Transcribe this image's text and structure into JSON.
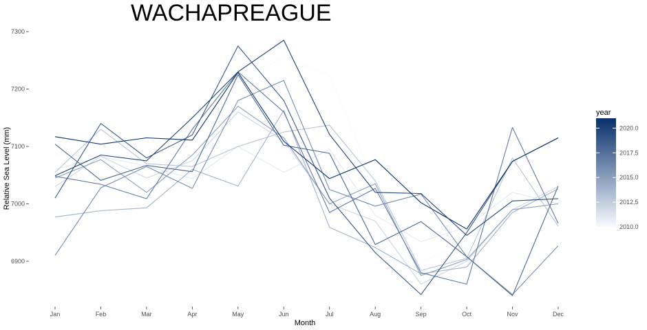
{
  "chart_data": {
    "type": "line",
    "title": "WACHAPREAGUE",
    "xlabel": "Month",
    "ylabel": "Relative Sea Level (mm)",
    "categories": [
      "Jan",
      "Feb",
      "Mar",
      "Apr",
      "May",
      "Jun",
      "Jul",
      "Aug",
      "Sep",
      "Oct",
      "Nov",
      "Dec"
    ],
    "yticks": [
      6900,
      7000,
      7100,
      7200,
      7300
    ],
    "ylim": [
      6840,
      7310
    ],
    "grid": false,
    "legend": {
      "title": "year",
      "position": "right",
      "labels": [
        "2010.0",
        "2012.5",
        "2015.0",
        "2017.5",
        "2020.0"
      ],
      "range": [
        2010,
        2021
      ]
    },
    "color_scale": {
      "low": "#f7fbff",
      "high": "#08306b"
    },
    "series": [
      {
        "year": 2010,
        "values": [
          7085,
          7089,
          7077,
          7063,
          7215,
          7255,
          7225,
          7032,
          6900,
          6930,
          7025,
          7010
        ]
      },
      {
        "year": 2011,
        "values": [
          7060,
          7082,
          7066,
          7044,
          7100,
          7055,
          7095,
          6980,
          6934,
          6960,
          7020,
          7000
        ]
      },
      {
        "year": 2012,
        "values": [
          7030,
          7083,
          7045,
          7075,
          7160,
          7110,
          7000,
          6970,
          6860,
          6900,
          6990,
          7030
        ]
      },
      {
        "year": 2013,
        "values": [
          7055,
          7130,
          7070,
          7065,
          7100,
          7125,
          7137,
          7040,
          6884,
          6905,
          7080,
          6961
        ]
      },
      {
        "year": 2014,
        "values": [
          6977,
          6988,
          6993,
          7060,
          7031,
          7163,
          6959,
          6924,
          6878,
          6890,
          6985,
          7026
        ]
      },
      {
        "year": 2015,
        "values": [
          7045,
          7077,
          7020,
          7085,
          7170,
          7115,
          7000,
          7035,
          6875,
          6903,
          6990,
          7000
        ]
      },
      {
        "year": 2016,
        "values": [
          6910,
          7028,
          7065,
          7027,
          7180,
          7215,
          7025,
          6996,
          7017,
          6908,
          6842,
          6927
        ]
      },
      {
        "year": 2017,
        "values": [
          7048,
          7034,
          7009,
          7130,
          7230,
          7160,
          6985,
          7027,
          6880,
          6860,
          7133,
          6966
        ]
      },
      {
        "year": 2018,
        "values": [
          7104,
          7041,
          7067,
          7056,
          7225,
          7102,
          7088,
          6929,
          6969,
          6908,
          6840,
          7031
        ]
      },
      {
        "year": 2019,
        "values": [
          7010,
          7140,
          7080,
          7120,
          7275,
          7180,
          7010,
          6915,
          6842,
          6950,
          7074,
          7115
        ]
      },
      {
        "year": 2020,
        "values": [
          7049,
          7085,
          7075,
          7150,
          7230,
          7285,
          7121,
          7020,
          7018,
          6945,
          7005,
          7009
        ]
      },
      {
        "year": 2021,
        "values": [
          7117,
          7104,
          7115,
          7111,
          7229,
          7109,
          7044,
          7077,
          7002,
          6956,
          7074,
          7115
        ]
      }
    ]
  }
}
